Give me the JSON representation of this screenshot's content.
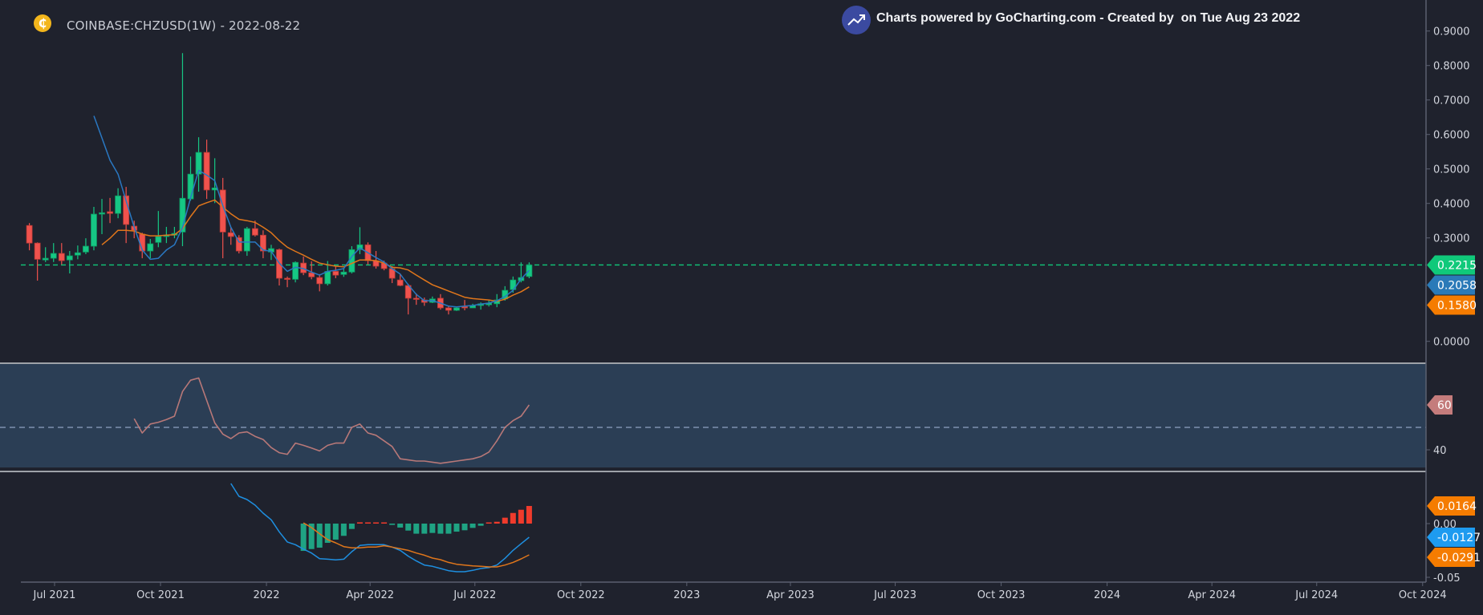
{
  "header": {
    "symbol_title": "COINBASE:CHZUSD(1W) - 2022-08-22",
    "coin_icon": "coin-icon",
    "coin_glyph": "₵",
    "powered_by": "Charts powered by GoCharting.com - Created by  on Tue Aug 23 2022",
    "powered_icon": "trend-up-icon"
  },
  "colors": {
    "background": "#1f222d",
    "up": "#16c784",
    "down": "#f0524d",
    "ma_fast": "#2a78c2",
    "ma_slow": "#e0761b",
    "rsi": "#b87878",
    "rsi_band": "#2b3e55",
    "macd": "#1e8fe0",
    "signal": "#e0761b",
    "hist_pos": "#f03b2c",
    "hist_neg": "#1fa383",
    "tag_last": "#10c97a",
    "tag_fast": "#2a7ab8",
    "tag_slow": "#f57c00",
    "tag_rsi": "#c47c7c",
    "tag_macd": "#1e9bf0"
  },
  "chart_data": {
    "type": "candlestick",
    "title": "COINBASE:CHZUSD(1W) - 2022-08-22",
    "interval": "1W",
    "start_week": "2021-06-14",
    "ohlc": [
      [
        0.336,
        0.343,
        0.264,
        0.285
      ],
      [
        0.285,
        0.287,
        0.176,
        0.238
      ],
      [
        0.236,
        0.273,
        0.23,
        0.241
      ],
      [
        0.241,
        0.285,
        0.23,
        0.255
      ],
      [
        0.255,
        0.285,
        0.223,
        0.234
      ],
      [
        0.236,
        0.262,
        0.197,
        0.248
      ],
      [
        0.25,
        0.278,
        0.238,
        0.257
      ],
      [
        0.259,
        0.299,
        0.253,
        0.276
      ],
      [
        0.276,
        0.39,
        0.264,
        0.369
      ],
      [
        0.369,
        0.413,
        0.311,
        0.373
      ],
      [
        0.376,
        0.416,
        0.343,
        0.371
      ],
      [
        0.371,
        0.444,
        0.357,
        0.422
      ],
      [
        0.422,
        0.448,
        0.285,
        0.339
      ],
      [
        0.334,
        0.35,
        0.299,
        0.322
      ],
      [
        0.311,
        0.315,
        0.241,
        0.262
      ],
      [
        0.262,
        0.297,
        0.241,
        0.283
      ],
      [
        0.287,
        0.378,
        0.273,
        0.304
      ],
      [
        0.304,
        0.332,
        0.285,
        0.308
      ],
      [
        0.308,
        0.332,
        0.299,
        0.313
      ],
      [
        0.317,
        0.836,
        0.276,
        0.415
      ],
      [
        0.413,
        0.536,
        0.408,
        0.485
      ],
      [
        0.485,
        0.592,
        0.434,
        0.548
      ],
      [
        0.548,
        0.585,
        0.413,
        0.439
      ],
      [
        0.439,
        0.531,
        0.401,
        0.445
      ],
      [
        0.439,
        0.474,
        0.241,
        0.317
      ],
      [
        0.315,
        0.332,
        0.28,
        0.304
      ],
      [
        0.301,
        0.308,
        0.255,
        0.262
      ],
      [
        0.262,
        0.332,
        0.248,
        0.327
      ],
      [
        0.327,
        0.35,
        0.304,
        0.308
      ],
      [
        0.308,
        0.322,
        0.241,
        0.262
      ],
      [
        0.259,
        0.28,
        0.236,
        0.269
      ],
      [
        0.266,
        0.269,
        0.162,
        0.183
      ],
      [
        0.183,
        0.188,
        0.157,
        0.18
      ],
      [
        0.18,
        0.232,
        0.171,
        0.229
      ],
      [
        0.227,
        0.246,
        0.192,
        0.199
      ],
      [
        0.199,
        0.232,
        0.18,
        0.187
      ],
      [
        0.185,
        0.195,
        0.145,
        0.167
      ],
      [
        0.167,
        0.233,
        0.162,
        0.203
      ],
      [
        0.203,
        0.218,
        0.183,
        0.192
      ],
      [
        0.194,
        0.211,
        0.187,
        0.201
      ],
      [
        0.201,
        0.276,
        0.197,
        0.266
      ],
      [
        0.266,
        0.331,
        0.253,
        0.28
      ],
      [
        0.28,
        0.287,
        0.223,
        0.234
      ],
      [
        0.234,
        0.262,
        0.211,
        0.218
      ],
      [
        0.227,
        0.234,
        0.206,
        0.211
      ],
      [
        0.211,
        0.218,
        0.169,
        0.183
      ],
      [
        0.178,
        0.195,
        0.16,
        0.162
      ],
      [
        0.162,
        0.167,
        0.078,
        0.125
      ],
      [
        0.125,
        0.139,
        0.106,
        0.122
      ],
      [
        0.12,
        0.127,
        0.103,
        0.113
      ],
      [
        0.113,
        0.13,
        0.111,
        0.123
      ],
      [
        0.125,
        0.137,
        0.092,
        0.097
      ],
      [
        0.097,
        0.104,
        0.078,
        0.09
      ],
      [
        0.09,
        0.099,
        0.088,
        0.097
      ],
      [
        0.101,
        0.12,
        0.09,
        0.097
      ],
      [
        0.097,
        0.109,
        0.097,
        0.104
      ],
      [
        0.104,
        0.113,
        0.092,
        0.109
      ],
      [
        0.106,
        0.118,
        0.101,
        0.111
      ],
      [
        0.109,
        0.137,
        0.099,
        0.12
      ],
      [
        0.123,
        0.16,
        0.118,
        0.148
      ],
      [
        0.15,
        0.188,
        0.141,
        0.178
      ],
      [
        0.176,
        0.229,
        0.171,
        0.185
      ],
      [
        0.188,
        0.229,
        0.183,
        0.2215
      ]
    ],
    "ma_fast": {
      "start_index": 8,
      "values": [
        0.654,
        0.59,
        0.525,
        0.485,
        0.408,
        0.331,
        0.265,
        0.238,
        0.241,
        0.265,
        0.28,
        0.331,
        0.416,
        0.496,
        0.482,
        0.466,
        0.393,
        0.331,
        0.288,
        0.288,
        0.288,
        0.265,
        0.261,
        0.227,
        0.203,
        0.215,
        0.211,
        0.201,
        0.192,
        0.203,
        0.206,
        0.211,
        0.246,
        0.271,
        0.257,
        0.243,
        0.23,
        0.211,
        0.195,
        0.164,
        0.136,
        0.118,
        0.118,
        0.111,
        0.102,
        0.1,
        0.102,
        0.104,
        0.108,
        0.111,
        0.118,
        0.13,
        0.148,
        0.181,
        0.2058
      ]
    },
    "ma_slow": {
      "start_index": 9,
      "values": [
        0.28,
        0.299,
        0.322,
        0.322,
        0.32,
        0.311,
        0.306,
        0.306,
        0.308,
        0.309,
        0.327,
        0.362,
        0.393,
        0.402,
        0.41,
        0.389,
        0.37,
        0.354,
        0.35,
        0.345,
        0.331,
        0.315,
        0.292,
        0.273,
        0.261,
        0.25,
        0.238,
        0.227,
        0.222,
        0.218,
        0.216,
        0.226,
        0.236,
        0.236,
        0.234,
        0.227,
        0.215,
        0.213,
        0.207,
        0.192,
        0.178,
        0.164,
        0.155,
        0.146,
        0.137,
        0.128,
        0.124,
        0.122,
        0.12,
        0.116,
        0.122,
        0.134,
        0.144,
        0.158
      ]
    },
    "last_price": 0.2215,
    "price_axis": {
      "ticks": [
        "0.9000",
        "0.8000",
        "0.7000",
        "0.6000",
        "0.5000",
        "0.4000",
        "0.3000",
        "0.0000"
      ],
      "tick_values": [
        0.9,
        0.8,
        0.7,
        0.6,
        0.5,
        0.4,
        0.3,
        0.0
      ]
    },
    "price_tags": [
      {
        "label": "0.2215",
        "value": 0.2215,
        "color_key": "tag_last"
      },
      {
        "label": "0.2058",
        "value": 0.2058,
        "color_key": "tag_fast"
      },
      {
        "label": "0.1580",
        "value": 0.158,
        "color_key": "tag_slow"
      }
    ],
    "rsi": {
      "start_index": 13,
      "values": [
        53.9,
        47.5,
        51.5,
        52.3,
        53.5,
        55,
        66,
        71,
        72,
        62,
        52,
        47,
        45,
        47.5,
        48,
        46,
        44.6,
        41,
        38.7,
        38,
        43,
        42,
        40.8,
        39.5,
        42,
        43,
        43,
        50,
        51.5,
        47.5,
        46.5,
        44,
        41.5,
        36,
        35.5,
        35,
        35,
        34.5,
        34,
        34.5,
        35,
        35.5,
        36,
        37,
        39,
        44,
        50,
        53,
        55,
        60
      ],
      "midline": 50,
      "ticks": [
        "40"
      ],
      "tick_values": [
        40
      ],
      "tag": {
        "label": "60",
        "value": 60
      }
    },
    "macd": {
      "line": {
        "start_index": 25,
        "values": [
          0.0373,
          0.0254,
          0.0224,
          0.0172,
          0.0097,
          0.0035,
          -0.0077,
          -0.0171,
          -0.0196,
          -0.0237,
          -0.0274,
          -0.0326,
          -0.0331,
          -0.0338,
          -0.0331,
          -0.0261,
          -0.0204,
          -0.0196,
          -0.0196,
          -0.0196,
          -0.0219,
          -0.0249,
          -0.0303,
          -0.0348,
          -0.0386,
          -0.0398,
          -0.0418,
          -0.0438,
          -0.0448,
          -0.0448,
          -0.0435,
          -0.0418,
          -0.041,
          -0.0386,
          -0.0323,
          -0.0249,
          -0.0187,
          -0.0127
        ]
      },
      "signal": {
        "start_index": 34,
        "values": [
          0.0007,
          -0.0037,
          -0.0094,
          -0.0149,
          -0.0179,
          -0.0214,
          -0.0226,
          -0.0226,
          -0.0219,
          -0.0219,
          -0.0206,
          -0.0219,
          -0.0234,
          -0.0249,
          -0.0274,
          -0.0294,
          -0.0321,
          -0.0336,
          -0.0361,
          -0.0378,
          -0.0386,
          -0.0393,
          -0.0398,
          -0.0403,
          -0.0403,
          -0.0386,
          -0.0361,
          -0.0328,
          -0.0291
        ]
      },
      "histogram": {
        "start_index": 34,
        "values": [
          -0.0254,
          -0.0237,
          -0.0224,
          -0.0179,
          -0.0149,
          -0.0114,
          -0.005,
          0.0012,
          0.001,
          0.0008,
          0.0004,
          -0.0012,
          -0.0037,
          -0.0065,
          -0.0094,
          -0.0094,
          -0.0087,
          -0.0094,
          -0.0094,
          -0.0075,
          -0.0062,
          -0.004,
          -0.002,
          0,
          0.0017,
          0.0055,
          0.0099,
          0.0129,
          0.0164
        ]
      },
      "ticks": [
        "0.00",
        "-0.05"
      ],
      "tick_values": [
        0,
        -0.05
      ],
      "tags": [
        {
          "label": "0.0164",
          "value": 0.0164,
          "color_key": "tag_slow"
        },
        {
          "label": "-0.0127",
          "value": -0.0127,
          "color_key": "tag_macd"
        },
        {
          "label": "-0.0291",
          "value": -0.0291,
          "color_key": "tag_slow"
        }
      ]
    },
    "time_ticks": [
      {
        "label": "Jul 2021",
        "date": "2021-07-01"
      },
      {
        "label": "Oct 2021",
        "date": "2021-10-01"
      },
      {
        "label": "2022",
        "date": "2022-01-01"
      },
      {
        "label": "Apr 2022",
        "date": "2022-04-01"
      },
      {
        "label": "Jul 2022",
        "date": "2022-07-01"
      },
      {
        "label": "Oct 2022",
        "date": "2022-10-01"
      },
      {
        "label": "2023",
        "date": "2023-01-01"
      },
      {
        "label": "Apr 2023",
        "date": "2023-04-01"
      },
      {
        "label": "Jul 2023",
        "date": "2023-07-01"
      },
      {
        "label": "Oct 2023",
        "date": "2023-10-01"
      },
      {
        "label": "2024",
        "date": "2024-01-01"
      },
      {
        "label": "Apr 2024",
        "date": "2024-04-01"
      },
      {
        "label": "Jul 2024",
        "date": "2024-07-01"
      },
      {
        "label": "Oct 2024",
        "date": "2024-10-01"
      }
    ]
  }
}
